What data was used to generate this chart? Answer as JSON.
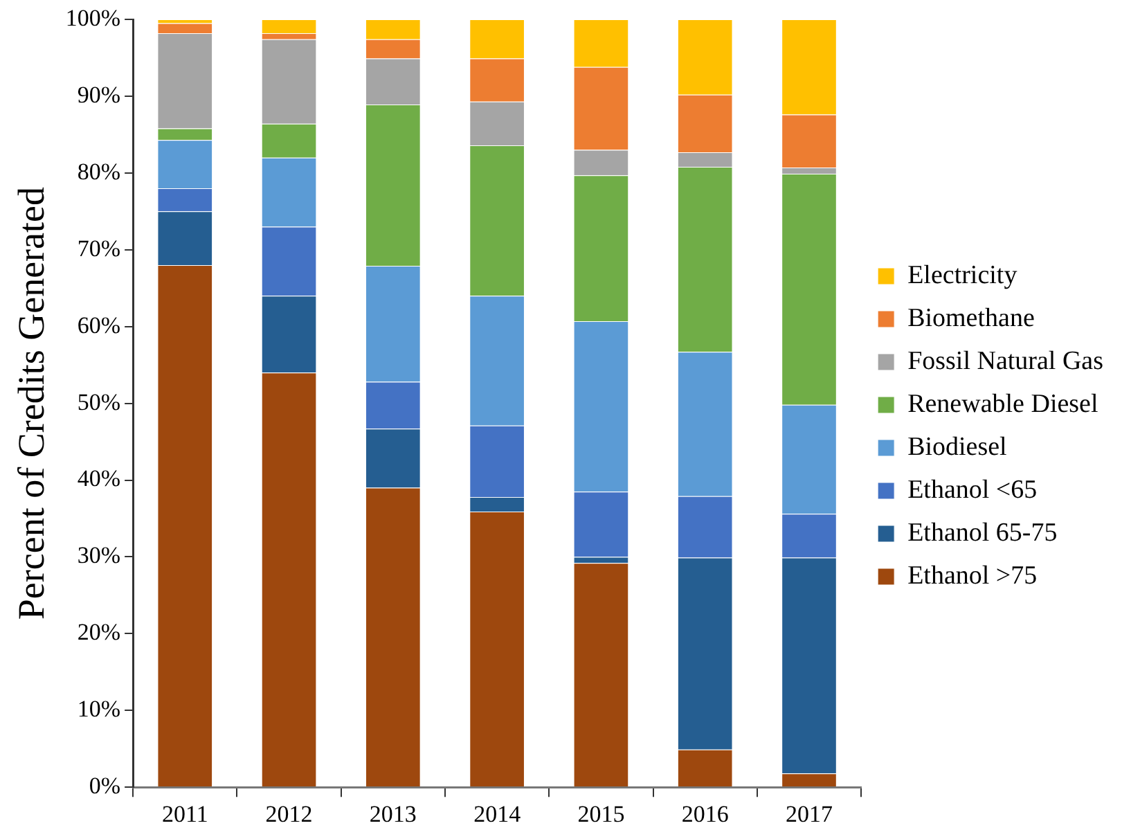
{
  "chart_data": {
    "type": "bar",
    "stacked": true,
    "ylabel": "Percent of Credits Generated",
    "categories": [
      "2011",
      "2012",
      "2013",
      "2014",
      "2015",
      "2016",
      "2017"
    ],
    "series": [
      {
        "name": "Ethanol >75",
        "color": "#9e480e",
        "values": [
          68,
          54,
          39,
          35.9,
          29.2,
          4.9,
          1.8
        ]
      },
      {
        "name": "Ethanol 65-75",
        "color": "#255e91",
        "values": [
          7,
          10,
          7.7,
          1.9,
          0.8,
          25,
          28.1
        ]
      },
      {
        "name": "Ethanol <65",
        "color": "#4472c4",
        "values": [
          3,
          9,
          6.1,
          9.3,
          8.5,
          8,
          5.7
        ]
      },
      {
        "name": "Biodiesel",
        "color": "#5b9bd5",
        "values": [
          6.3,
          9,
          15.1,
          16.9,
          22.2,
          18.8,
          14.2
        ]
      },
      {
        "name": "Renewable Diesel",
        "color": "#70ad47",
        "values": [
          1.5,
          4.4,
          21,
          19.6,
          19,
          24.1,
          30.1
        ]
      },
      {
        "name": "Fossil Natural Gas",
        "color": "#a5a5a5",
        "values": [
          12.4,
          11,
          6,
          5.7,
          3.3,
          1.9,
          0.8
        ]
      },
      {
        "name": "Biomethane",
        "color": "#ed7d31",
        "values": [
          1.3,
          0.8,
          2.5,
          5.6,
          10.8,
          7.5,
          6.9
        ]
      },
      {
        "name": "Electricity",
        "color": "#ffc000",
        "values": [
          0.5,
          1.8,
          2.6,
          5.1,
          6.2,
          9.8,
          12.4
        ]
      }
    ],
    "ylim": [
      0,
      100
    ],
    "yticks": [
      {
        "value": 0,
        "label": "0%"
      },
      {
        "value": 10,
        "label": "10%"
      },
      {
        "value": 20,
        "label": "20%"
      },
      {
        "value": 30,
        "label": "30%"
      },
      {
        "value": 40,
        "label": "40%"
      },
      {
        "value": 50,
        "label": "50%"
      },
      {
        "value": 60,
        "label": "60%"
      },
      {
        "value": 70,
        "label": "70%"
      },
      {
        "value": 80,
        "label": "80%"
      },
      {
        "value": 90,
        "label": "90%"
      },
      {
        "value": 100,
        "label": "100%"
      }
    ],
    "grid": false,
    "legend": "right"
  }
}
